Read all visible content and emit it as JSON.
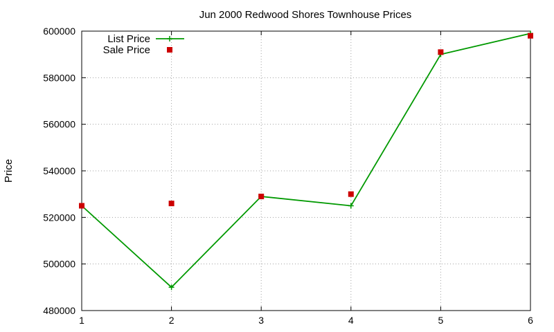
{
  "chart_data": {
    "type": "line",
    "title": "Jun 2000 Redwood Shores Townhouse Prices",
    "xlabel": "",
    "ylabel": "Price",
    "x": [
      1,
      2,
      3,
      4,
      5,
      6
    ],
    "xlim": [
      1,
      6
    ],
    "ylim": [
      480000,
      600000
    ],
    "xticks": [
      1,
      2,
      3,
      4,
      5,
      6
    ],
    "yticks": [
      480000,
      500000,
      520000,
      540000,
      560000,
      580000,
      600000
    ],
    "grid": true,
    "legend_position": "top-left",
    "series": [
      {
        "name": "List Price",
        "style": "lines+points",
        "marker": "plus",
        "color": "#009900",
        "values": [
          525000,
          490000,
          529000,
          525000,
          590000,
          599000
        ]
      },
      {
        "name": "Sale Price",
        "style": "points",
        "marker": "square",
        "color": "#cc0000",
        "values": [
          525000,
          526000,
          529000,
          530000,
          591000,
          598000
        ]
      }
    ]
  }
}
